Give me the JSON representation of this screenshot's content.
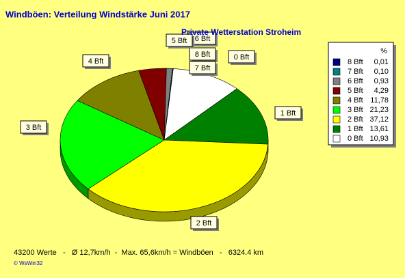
{
  "chart_data": {
    "type": "pie",
    "title": "Windböen: Verteilung Windstärke  Juni 2017",
    "subtitle": "Private Wetterstation Stroheim",
    "categories": [
      "8 Bft",
      "7 Bft",
      "6 Bft",
      "5 Bft",
      "4 Bft",
      "3 Bft",
      "2 Bft",
      "1 Bft",
      "0 Bft"
    ],
    "values": [
      0.01,
      0.1,
      0.93,
      4.29,
      11.78,
      21.23,
      37.12,
      13.61,
      10.93
    ],
    "value_labels": [
      "0,01",
      "0,10",
      "0,93",
      "4,29",
      "11,78",
      "21,23",
      "37,12",
      "13,61",
      "10,93"
    ],
    "colors": [
      "#000080",
      "#008080",
      "#808080",
      "#800000",
      "#808000",
      "#00ff00",
      "#ffff00",
      "#008000",
      "#ffffff"
    ],
    "legend_title": "%"
  },
  "footer": "43200 Werte   -   Ø 12,7km/h  -  Max. 65,6km/h = Windböen   -   6324.4 km",
  "credit": "© WsWin32"
}
